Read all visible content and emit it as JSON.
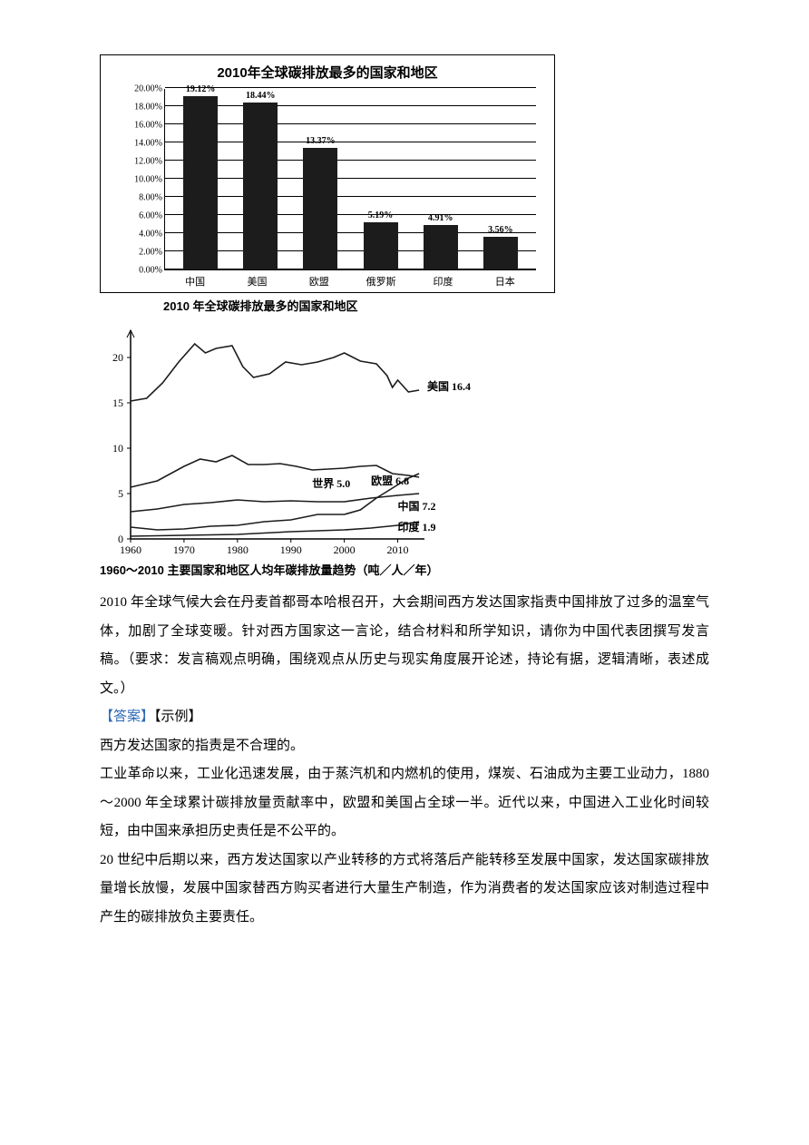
{
  "bar_chart": {
    "type": "bar",
    "title": "2010年全球碳排放最多的国家和地区",
    "caption": "2010 年全球碳排放最多的国家和地区",
    "ymax": 20,
    "ytick_step": 2,
    "bar_color": "#1c1c1c",
    "grid_color": "#000000",
    "categories": [
      "中国",
      "美国",
      "欧盟",
      "俄罗斯",
      "印度",
      "日本"
    ],
    "values": [
      19.12,
      18.44,
      13.37,
      5.19,
      4.91,
      3.56
    ],
    "value_labels": [
      "19.12%",
      "18.44%",
      "13.37%",
      "5.19%",
      "4.91%",
      "3.56%"
    ],
    "y_labels": [
      "0.00%",
      "2.00%",
      "4.00%",
      "6.00%",
      "8.00%",
      "10.00%",
      "12.00%",
      "14.00%",
      "16.00%",
      "18.00%",
      "20.00%"
    ]
  },
  "line_chart": {
    "type": "line",
    "caption": "1960～2010 主要国家和地区人均年碳排放量趋势（吨／人／年）",
    "x_min": 1960,
    "x_max": 2015,
    "y_min": 0,
    "y_max": 23,
    "x_ticks": [
      1960,
      1970,
      1980,
      1990,
      2000,
      2010
    ],
    "y_ticks": [
      0,
      5,
      10,
      15,
      20
    ],
    "line_color": "#1c1c1c",
    "series": {
      "usa": {
        "label": "美国 16.4",
        "pts": [
          [
            1960,
            15.2
          ],
          [
            1963,
            15.5
          ],
          [
            1966,
            17.2
          ],
          [
            1969,
            19.5
          ],
          [
            1972,
            21.5
          ],
          [
            1974,
            20.5
          ],
          [
            1976,
            21.0
          ],
          [
            1979,
            21.3
          ],
          [
            1981,
            19.0
          ],
          [
            1983,
            17.8
          ],
          [
            1986,
            18.2
          ],
          [
            1989,
            19.5
          ],
          [
            1992,
            19.2
          ],
          [
            1995,
            19.5
          ],
          [
            1998,
            20.0
          ],
          [
            2000,
            20.5
          ],
          [
            2003,
            19.6
          ],
          [
            2006,
            19.3
          ],
          [
            2008,
            18.0
          ],
          [
            2009,
            16.7
          ],
          [
            2010,
            17.5
          ],
          [
            2012,
            16.2
          ],
          [
            2014,
            16.4
          ]
        ]
      },
      "eu": {
        "label": "欧盟 6.8",
        "pts": [
          [
            1960,
            5.7
          ],
          [
            1965,
            6.4
          ],
          [
            1970,
            8.0
          ],
          [
            1973,
            8.8
          ],
          [
            1976,
            8.5
          ],
          [
            1979,
            9.2
          ],
          [
            1982,
            8.2
          ],
          [
            1985,
            8.2
          ],
          [
            1988,
            8.3
          ],
          [
            1991,
            8.0
          ],
          [
            1994,
            7.6
          ],
          [
            1997,
            7.7
          ],
          [
            2000,
            7.8
          ],
          [
            2003,
            8.0
          ],
          [
            2006,
            8.1
          ],
          [
            2009,
            7.2
          ],
          [
            2012,
            7.0
          ],
          [
            2014,
            6.8
          ]
        ]
      },
      "world": {
        "label": "世界 5.0",
        "pts": [
          [
            1960,
            3.0
          ],
          [
            1965,
            3.3
          ],
          [
            1970,
            3.8
          ],
          [
            1975,
            4.0
          ],
          [
            1980,
            4.3
          ],
          [
            1985,
            4.1
          ],
          [
            1990,
            4.2
          ],
          [
            1995,
            4.1
          ],
          [
            2000,
            4.1
          ],
          [
            2005,
            4.5
          ],
          [
            2010,
            4.8
          ],
          [
            2014,
            5.0
          ]
        ]
      },
      "china": {
        "label": "中国 7.2",
        "pts": [
          [
            1960,
            1.3
          ],
          [
            1965,
            1.0
          ],
          [
            1970,
            1.1
          ],
          [
            1975,
            1.4
          ],
          [
            1980,
            1.5
          ],
          [
            1985,
            1.9
          ],
          [
            1990,
            2.1
          ],
          [
            1995,
            2.7
          ],
          [
            2000,
            2.7
          ],
          [
            2003,
            3.2
          ],
          [
            2006,
            4.5
          ],
          [
            2009,
            5.6
          ],
          [
            2012,
            6.7
          ],
          [
            2014,
            7.2
          ]
        ]
      },
      "india": {
        "label": "印度 1.9",
        "pts": [
          [
            1960,
            0.3
          ],
          [
            1970,
            0.4
          ],
          [
            1980,
            0.5
          ],
          [
            1990,
            0.8
          ],
          [
            2000,
            1.0
          ],
          [
            2005,
            1.2
          ],
          [
            2010,
            1.5
          ],
          [
            2014,
            1.9
          ]
        ]
      }
    },
    "label_positions": {
      "usa": [
        2015.5,
        16.4
      ],
      "eu": [
        2005,
        6.0
      ],
      "world": [
        1994,
        5.7
      ],
      "china": [
        2010,
        3.2
      ],
      "india": [
        2010,
        0.9
      ]
    }
  },
  "text": {
    "p1": "2010 年全球气候大会在丹麦首都哥本哈根召开，大会期间西方发达国家指责中国排放了过多的温室气体，加剧了全球变暖。针对西方国家这一言论，结合材料和所学知识，请你为中国代表团撰写发言稿。（要求：发言稿观点明确，围绕观点从历史与现实角度展开论述，持论有据，逻辑清晰，表述成文。）",
    "answer_prefix": "【答案】",
    "answer_example": "【示例】",
    "p2": "西方发达国家的指责是不合理的。",
    "p3": "工业革命以来，工业化迅速发展，由于蒸汽机和内燃机的使用，煤炭、石油成为主要工业动力，1880～2000 年全球累计碳排放量贡献率中，欧盟和美国占全球一半。近代以来，中国进入工业化时间较短，由中国来承担历史责任是不公平的。",
    "p4": "20 世纪中后期以来，西方发达国家以产业转移的方式将落后产能转移至发展中国家，发达国家碳排放量增长放慢，发展中国家替西方购买者进行大量生产制造，作为消费者的发达国家应该对制造过程中产生的碳排放负主要责任。"
  }
}
